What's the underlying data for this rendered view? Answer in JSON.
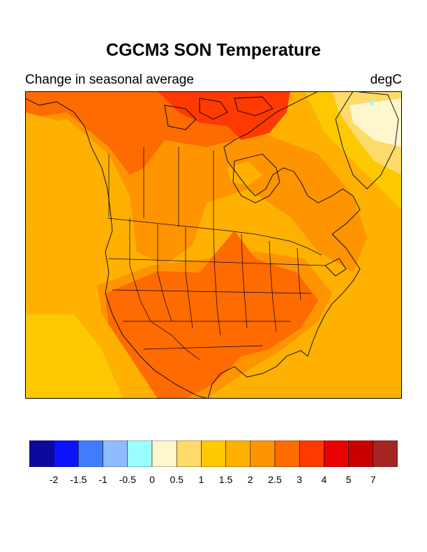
{
  "title": "CGCM3 SON Temperature",
  "subtitle_left": "Change in seasonal average",
  "subtitle_right": "degC",
  "map": {
    "region": "North America",
    "variable": "temperature change",
    "season": "SON"
  },
  "colorbar": {
    "colors": [
      "#0a0a9c",
      "#0a14fe",
      "#3f7dfe",
      "#8fbcfe",
      "#9afeff",
      "#fef6cc",
      "#fedb6a",
      "#fec900",
      "#feb100",
      "#fe9400",
      "#fe6b00",
      "#fe3a00",
      "#ea0000",
      "#c90000",
      "#a52525"
    ],
    "tick_labels": [
      "-2",
      "-1.5",
      "-1",
      "-0.5",
      "0",
      "0.5",
      "1",
      "1.5",
      "2",
      "2.5",
      "3",
      "4",
      "5",
      "7"
    ]
  }
}
